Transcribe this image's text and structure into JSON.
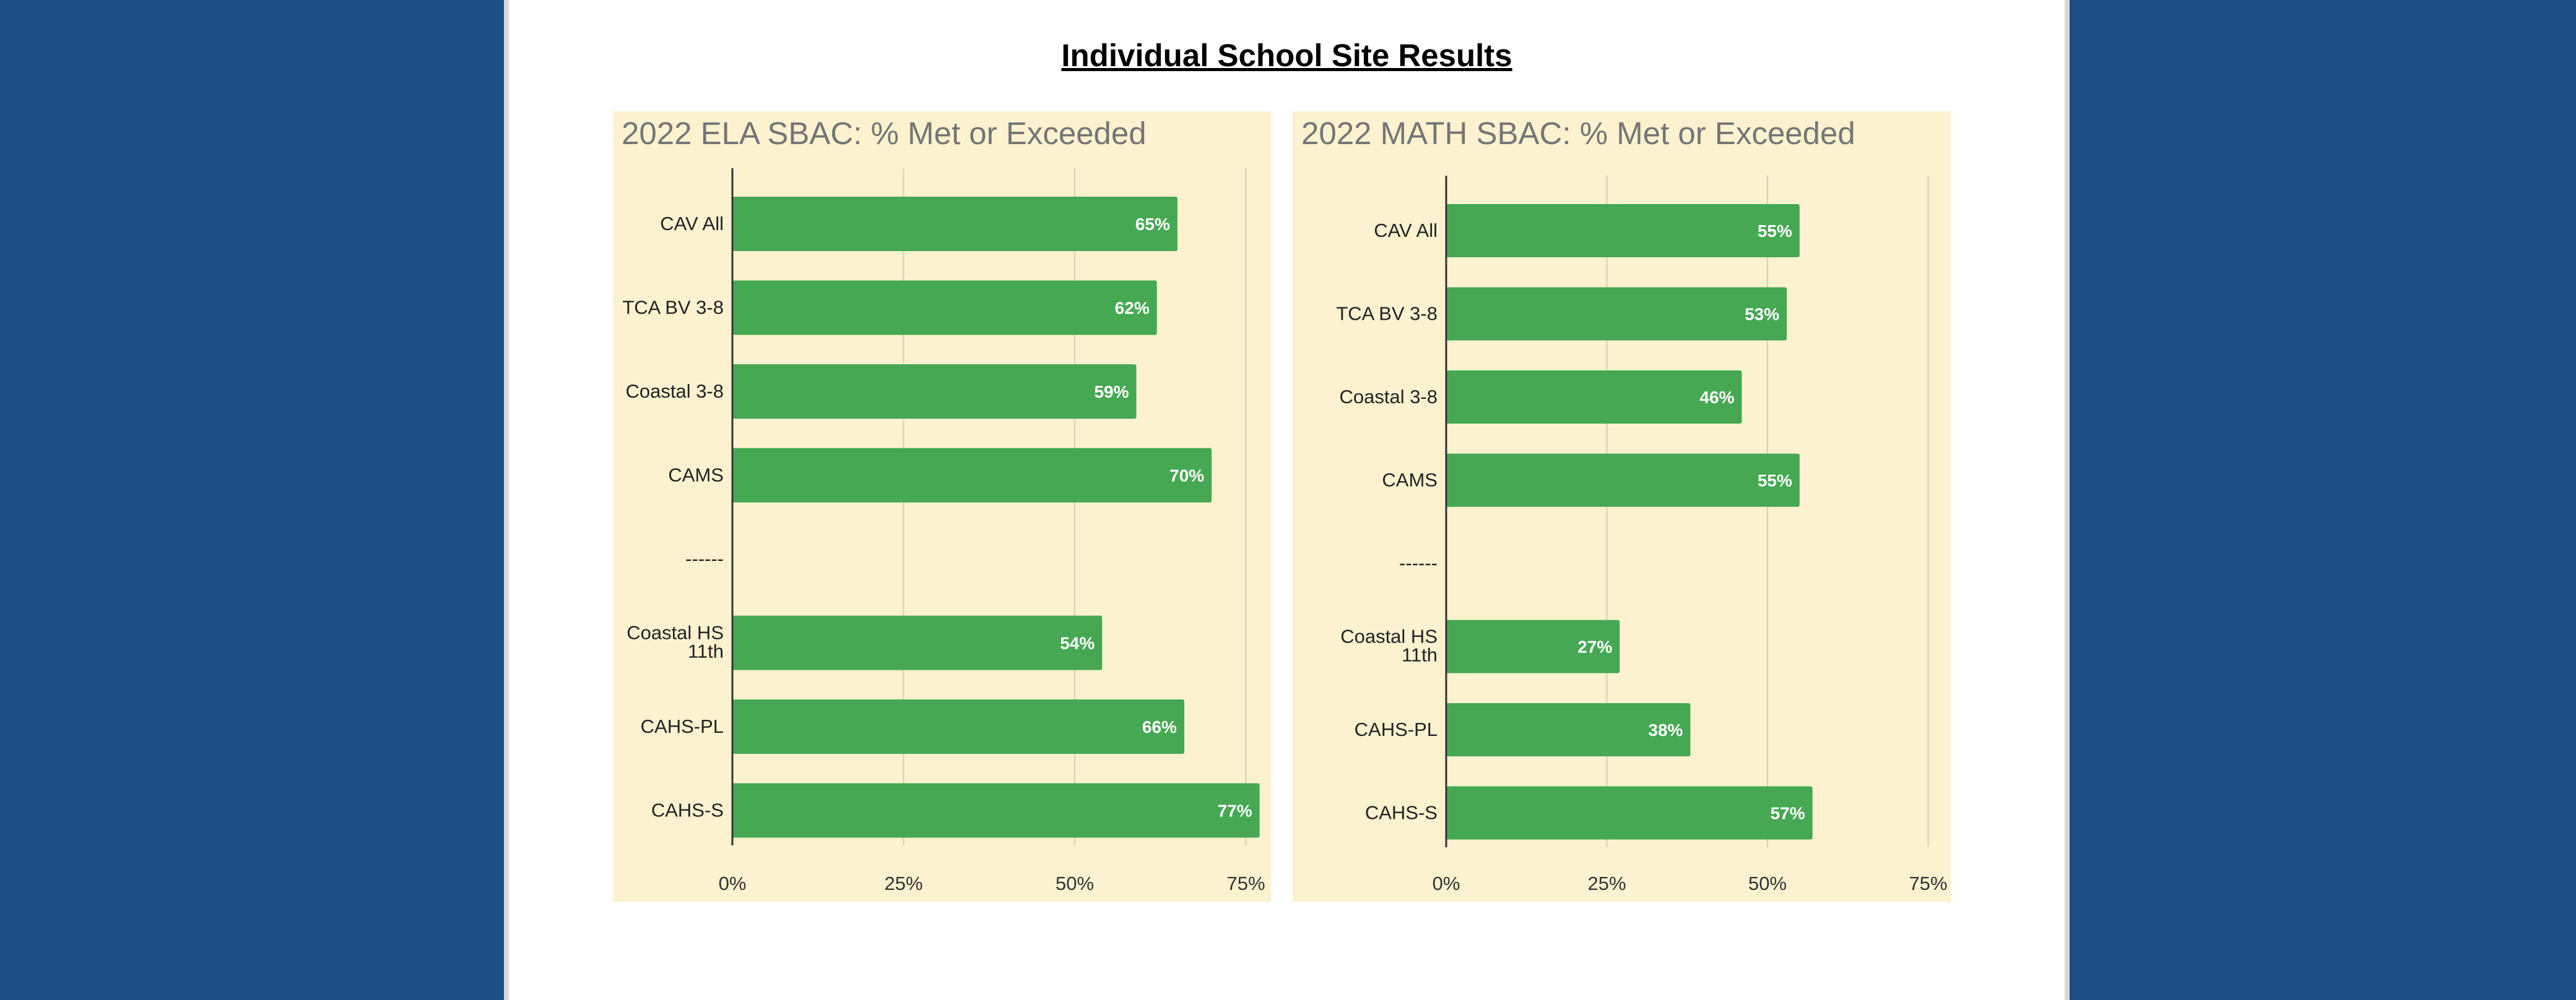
{
  "page": {
    "title": "Individual School Site Results",
    "colors": {
      "background": "#1c4f84",
      "panel": "#fcf2cf",
      "bar": "#46a853",
      "axis": "#333333",
      "grid": "#d6cfb4"
    }
  },
  "chart_data": [
    {
      "type": "bar",
      "orientation": "horizontal",
      "title": "2022 ELA SBAC: % Met or Exceeded",
      "categories": [
        "CAV All",
        "TCA BV 3-8",
        "Coastal 3-8",
        "CAMS",
        "------",
        "Coastal HS 11th",
        "CAHS-PL",
        "CAHS-S"
      ],
      "values": [
        65,
        62,
        59,
        70,
        null,
        54,
        66,
        77
      ],
      "data_labels": [
        "65%",
        "62%",
        "59%",
        "70%",
        "",
        "54%",
        "66%",
        "77%"
      ],
      "xlim": [
        0,
        75
      ],
      "ticks": [
        0,
        25,
        50,
        75
      ],
      "tick_labels": [
        "0%",
        "25%",
        "50%",
        "75%"
      ],
      "grid": true
    },
    {
      "type": "bar",
      "orientation": "horizontal",
      "title": "2022 MATH SBAC: % Met or Exceeded",
      "categories": [
        "CAV All",
        "TCA BV 3-8",
        "Coastal 3-8",
        "CAMS",
        "------",
        "Coastal HS 11th",
        "CAHS-PL",
        "CAHS-S"
      ],
      "values": [
        55,
        53,
        46,
        55,
        null,
        27,
        38,
        57
      ],
      "data_labels": [
        "55%",
        "53%",
        "46%",
        "55%",
        "",
        "27%",
        "38%",
        "57%"
      ],
      "xlim": [
        0,
        75
      ],
      "ticks": [
        0,
        25,
        50,
        75
      ],
      "tick_labels": [
        "0%",
        "25%",
        "50%",
        "75%"
      ],
      "grid": true
    }
  ]
}
